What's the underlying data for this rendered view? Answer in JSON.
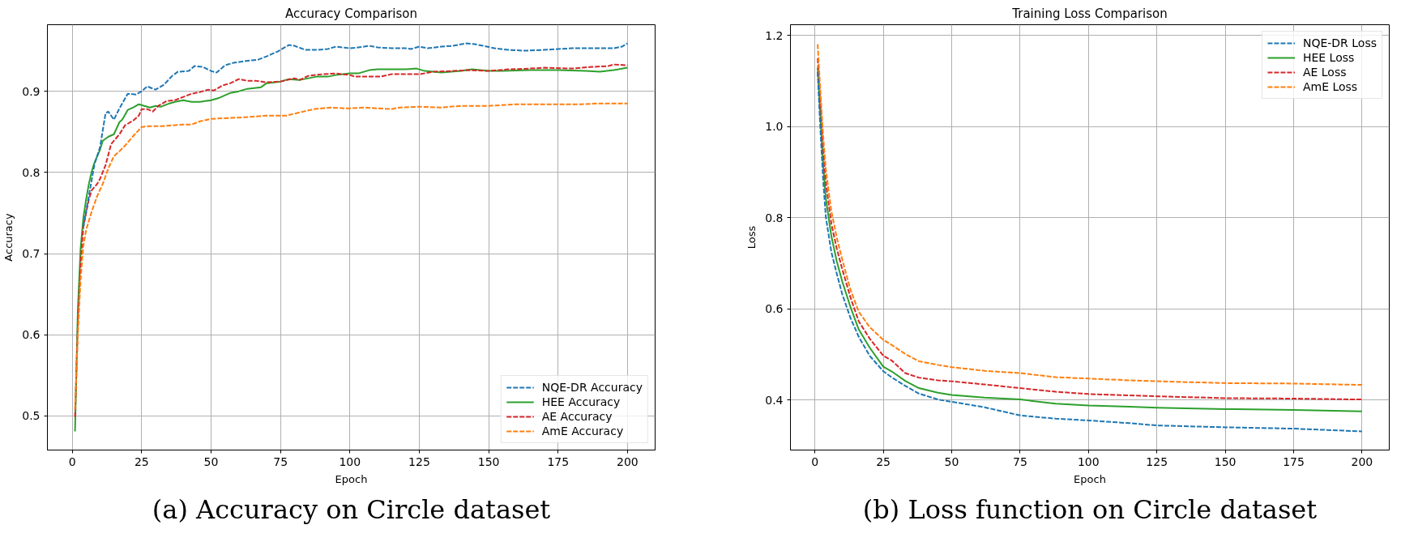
{
  "chart_data": [
    {
      "type": "line",
      "title": "Accuracy Comparison",
      "xlabel": "Epoch",
      "ylabel": "Accuracy",
      "annotations": [
        "(a) Accuracy on Circle dataset"
      ],
      "xlim": [
        -8.95,
        209.95
      ],
      "ylim": [
        0.458,
        0.982
      ],
      "xticks": [
        0,
        25,
        50,
        75,
        100,
        125,
        150,
        175,
        200
      ],
      "yticks": [
        0.5,
        0.6,
        0.7,
        0.8,
        0.9
      ],
      "grid": true,
      "legend": "bottom right",
      "series": [
        {
          "name": "NQE-DR Accuracy",
          "color": "#1f77b4",
          "line_style": "dashed",
          "x": [
            4,
            8,
            10,
            12,
            13,
            15,
            17,
            20,
            23,
            25,
            27,
            30,
            33,
            36,
            38,
            42,
            44,
            47,
            50,
            52,
            55,
            58,
            62,
            67,
            70,
            74,
            78,
            80,
            84,
            88,
            92,
            95,
            100,
            103,
            107,
            110,
            115,
            120,
            122,
            125,
            128,
            133,
            137,
            142,
            145,
            148,
            152,
            157,
            163,
            170,
            175,
            180,
            188,
            195,
            198,
            200
          ],
          "values": [
            0.733,
            0.81,
            0.831,
            0.873,
            0.875,
            0.865,
            0.879,
            0.897,
            0.896,
            0.9,
            0.906,
            0.902,
            0.908,
            0.919,
            0.924,
            0.925,
            0.931,
            0.93,
            0.925,
            0.923,
            0.932,
            0.935,
            0.937,
            0.939,
            0.943,
            0.949,
            0.957,
            0.956,
            0.951,
            0.951,
            0.952,
            0.955,
            0.953,
            0.954,
            0.956,
            0.954,
            0.953,
            0.953,
            0.952,
            0.955,
            0.953,
            0.955,
            0.956,
            0.959,
            0.958,
            0.956,
            0.953,
            0.951,
            0.95,
            0.951,
            0.952,
            0.953,
            0.953,
            0.953,
            0.955,
            0.959
          ]
        },
        {
          "name": "HEE Accuracy",
          "color": "#2ca02c",
          "line_style": "solid",
          "x": [
            1,
            2,
            3,
            4,
            5,
            6,
            7,
            8,
            10,
            11,
            13,
            15,
            17,
            18,
            20,
            22,
            24,
            26,
            28,
            30,
            32,
            35,
            37,
            40,
            43,
            46,
            50,
            53,
            57,
            60,
            63,
            68,
            70,
            75,
            78,
            82,
            88,
            92,
            95,
            100,
            103,
            107,
            110,
            115,
            120,
            124,
            127,
            133,
            140,
            144,
            150,
            155,
            165,
            175,
            185,
            190,
            195,
            200
          ],
          "values": [
            0.481,
            0.63,
            0.706,
            0.744,
            0.767,
            0.786,
            0.801,
            0.812,
            0.828,
            0.839,
            0.844,
            0.847,
            0.862,
            0.865,
            0.877,
            0.88,
            0.884,
            0.882,
            0.88,
            0.882,
            0.881,
            0.885,
            0.887,
            0.889,
            0.887,
            0.887,
            0.889,
            0.892,
            0.898,
            0.9,
            0.903,
            0.905,
            0.91,
            0.912,
            0.915,
            0.914,
            0.918,
            0.918,
            0.92,
            0.922,
            0.922,
            0.926,
            0.927,
            0.927,
            0.927,
            0.928,
            0.925,
            0.923,
            0.925,
            0.927,
            0.925,
            0.925,
            0.926,
            0.926,
            0.925,
            0.924,
            0.926,
            0.929
          ]
        },
        {
          "name": "AE Accuracy",
          "color": "#d62728",
          "line_style": "dashed",
          "x": [
            1,
            2,
            3,
            4,
            6,
            7,
            9,
            10,
            12,
            14,
            16,
            17,
            19,
            22,
            24,
            25,
            27,
            29,
            31,
            34,
            37,
            40,
            43,
            46,
            49,
            51,
            54,
            57,
            60,
            63,
            66,
            70,
            75,
            80,
            82,
            85,
            90,
            95,
            100,
            102,
            107,
            111,
            115,
            120,
            125,
            130,
            137,
            143,
            150,
            157,
            165,
            170,
            180,
            187,
            193,
            195,
            200
          ],
          "values": [
            0.499,
            0.611,
            0.687,
            0.733,
            0.767,
            0.778,
            0.786,
            0.792,
            0.809,
            0.835,
            0.843,
            0.847,
            0.858,
            0.864,
            0.87,
            0.878,
            0.878,
            0.875,
            0.882,
            0.888,
            0.889,
            0.893,
            0.897,
            0.899,
            0.902,
            0.901,
            0.907,
            0.91,
            0.915,
            0.913,
            0.913,
            0.911,
            0.912,
            0.916,
            0.914,
            0.919,
            0.921,
            0.922,
            0.92,
            0.918,
            0.918,
            0.918,
            0.921,
            0.921,
            0.921,
            0.924,
            0.925,
            0.926,
            0.925,
            0.927,
            0.928,
            0.929,
            0.928,
            0.93,
            0.931,
            0.933,
            0.932
          ]
        },
        {
          "name": "AmE Accuracy",
          "color": "#ff7f0e",
          "line_style": "dashed",
          "x": [
            1,
            2,
            3,
            4,
            5,
            7,
            9,
            11,
            13,
            15,
            17,
            19,
            22,
            25,
            28,
            32,
            36,
            40,
            43,
            46,
            50,
            56,
            62,
            70,
            77,
            82,
            87,
            93,
            98,
            100,
            105,
            110,
            115,
            118,
            125,
            133,
            140,
            150,
            160,
            175,
            183,
            190,
            200
          ],
          "values": [
            0.508,
            0.599,
            0.668,
            0.71,
            0.729,
            0.752,
            0.771,
            0.786,
            0.805,
            0.82,
            0.826,
            0.833,
            0.845,
            0.856,
            0.857,
            0.857,
            0.858,
            0.859,
            0.859,
            0.863,
            0.866,
            0.867,
            0.868,
            0.87,
            0.87,
            0.874,
            0.878,
            0.88,
            0.879,
            0.879,
            0.88,
            0.879,
            0.878,
            0.88,
            0.881,
            0.88,
            0.882,
            0.882,
            0.884,
            0.884,
            0.884,
            0.885,
            0.885
          ]
        }
      ]
    },
    {
      "type": "line",
      "title": "Training Loss Comparison",
      "xlabel": "Epoch",
      "ylabel": "Loss",
      "annotations": [
        "(b) Loss function on Circle dataset"
      ],
      "xlim": [
        -8.95,
        209.95
      ],
      "ylim": [
        0.29,
        1.224
      ],
      "xticks": [
        0,
        25,
        50,
        75,
        100,
        125,
        150,
        175,
        200
      ],
      "yticks": [
        0.4,
        0.6,
        0.8,
        {
          "value": 1.0,
          "label": "1.0"
        },
        1.2
      ],
      "grid": true,
      "legend": "top right",
      "x": [
        1,
        2,
        3,
        4,
        6,
        8,
        10,
        13,
        16,
        20,
        25,
        28,
        33,
        38,
        45,
        50,
        62,
        75,
        88,
        100,
        115,
        125,
        150,
        175,
        200
      ],
      "series": [
        {
          "name": "NQE-DR Loss",
          "color": "#1f77b4",
          "line_style": "dashed",
          "values": [
            1.12,
            0.994,
            0.884,
            0.801,
            0.725,
            0.677,
            0.632,
            0.58,
            0.539,
            0.497,
            0.463,
            0.45,
            0.431,
            0.414,
            0.401,
            0.396,
            0.384,
            0.366,
            0.359,
            0.355,
            0.349,
            0.344,
            0.34,
            0.337,
            0.331
          ]
        },
        {
          "name": "HEE Loss",
          "color": "#2ca02c",
          "line_style": "solid",
          "values": [
            1.13,
            1.022,
            0.918,
            0.842,
            0.76,
            0.704,
            0.66,
            0.604,
            0.555,
            0.515,
            0.473,
            0.463,
            0.442,
            0.426,
            0.416,
            0.411,
            0.405,
            0.401,
            0.392,
            0.388,
            0.385,
            0.383,
            0.38,
            0.378,
            0.375
          ]
        },
        {
          "name": "AE Loss",
          "color": "#d62728",
          "line_style": "dashed",
          "values": [
            1.15,
            1.056,
            0.953,
            0.877,
            0.787,
            0.732,
            0.687,
            0.625,
            0.573,
            0.535,
            0.497,
            0.487,
            0.459,
            0.449,
            0.443,
            0.441,
            0.434,
            0.426,
            0.418,
            0.413,
            0.41,
            0.408,
            0.404,
            0.403,
            0.401
          ]
        },
        {
          "name": "AmE Loss",
          "color": "#ff7f0e",
          "line_style": "dashed",
          "values": [
            1.181,
            1.077,
            0.98,
            0.905,
            0.815,
            0.756,
            0.708,
            0.642,
            0.594,
            0.56,
            0.532,
            0.521,
            0.501,
            0.485,
            0.477,
            0.472,
            0.464,
            0.459,
            0.45,
            0.447,
            0.443,
            0.441,
            0.437,
            0.436,
            0.433
          ]
        }
      ]
    }
  ]
}
